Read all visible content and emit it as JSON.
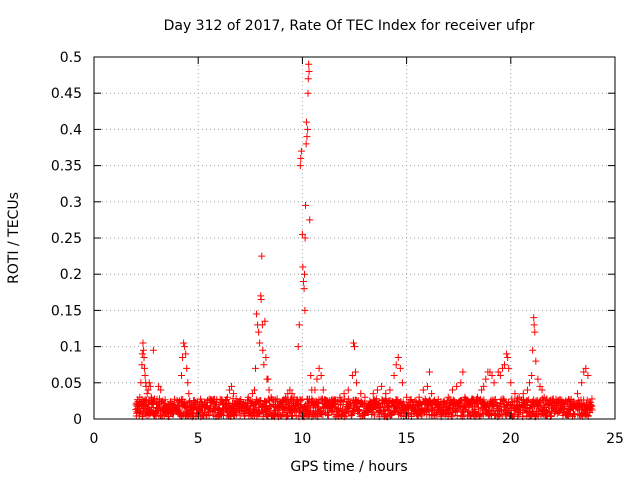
{
  "chart_data": {
    "type": "scatter",
    "title": "Day 312 of 2017, Rate Of TEC Index for receiver ufpr",
    "xlabel": "GPS time / hours",
    "ylabel": "ROTI / TECUs",
    "xlim": [
      0,
      25
    ],
    "ylim": [
      0,
      0.5
    ],
    "xticks": [
      0,
      5,
      10,
      15,
      20,
      25
    ],
    "yticks": [
      0,
      0.05,
      0.1,
      0.15,
      0.2,
      0.25,
      0.3,
      0.35,
      0.4,
      0.45,
      0.5
    ],
    "grid": true,
    "marker": "+",
    "series": [
      {
        "name": "ROTI",
        "color": "#ff0000",
        "points": [
          [
            2.0,
            0.013
          ],
          [
            2.05,
            0.008
          ],
          [
            2.1,
            0.02
          ],
          [
            2.15,
            0.011
          ],
          [
            2.2,
            0.03
          ],
          [
            2.25,
            0.05
          ],
          [
            2.3,
            0.075
          ],
          [
            2.32,
            0.09
          ],
          [
            2.35,
            0.105
          ],
          [
            2.38,
            0.095
          ],
          [
            2.4,
            0.085
          ],
          [
            2.42,
            0.07
          ],
          [
            2.45,
            0.06
          ],
          [
            2.48,
            0.05
          ],
          [
            2.5,
            0.045
          ],
          [
            2.55,
            0.035
          ],
          [
            2.6,
            0.04
          ],
          [
            2.65,
            0.05
          ],
          [
            2.7,
            0.045
          ],
          [
            2.75,
            0.03
          ],
          [
            2.8,
            0.02
          ],
          [
            2.85,
            0.095
          ],
          [
            2.9,
            0.028
          ],
          [
            3.0,
            0.02
          ],
          [
            3.1,
            0.045
          ],
          [
            3.2,
            0.04
          ],
          [
            3.3,
            0.025
          ],
          [
            3.4,
            0.018
          ],
          [
            3.5,
            0.015
          ],
          [
            3.6,
            0.012
          ],
          [
            3.7,
            0.014
          ],
          [
            3.8,
            0.02
          ],
          [
            3.9,
            0.015
          ],
          [
            4.0,
            0.012
          ],
          [
            4.1,
            0.025
          ],
          [
            4.2,
            0.06
          ],
          [
            4.25,
            0.085
          ],
          [
            4.3,
            0.105
          ],
          [
            4.35,
            0.1
          ],
          [
            4.4,
            0.09
          ],
          [
            4.45,
            0.07
          ],
          [
            4.5,
            0.05
          ],
          [
            4.55,
            0.035
          ],
          [
            4.6,
            0.025
          ],
          [
            4.7,
            0.02
          ],
          [
            4.8,
            0.015
          ],
          [
            4.9,
            0.02
          ],
          [
            5.0,
            0.015
          ],
          [
            5.2,
            0.012
          ],
          [
            5.4,
            0.018
          ],
          [
            5.6,
            0.015
          ],
          [
            5.8,
            0.012
          ],
          [
            6.0,
            0.015
          ],
          [
            6.2,
            0.02
          ],
          [
            6.4,
            0.03
          ],
          [
            6.5,
            0.04
          ],
          [
            6.6,
            0.045
          ],
          [
            6.7,
            0.035
          ],
          [
            6.8,
            0.02
          ],
          [
            7.0,
            0.015
          ],
          [
            7.2,
            0.02
          ],
          [
            7.4,
            0.03
          ],
          [
            7.6,
            0.035
          ],
          [
            7.7,
            0.04
          ],
          [
            7.75,
            0.07
          ],
          [
            7.8,
            0.145
          ],
          [
            7.85,
            0.13
          ],
          [
            7.9,
            0.12
          ],
          [
            7.95,
            0.105
          ],
          [
            8.0,
            0.17
          ],
          [
            8.02,
            0.165
          ],
          [
            8.05,
            0.225
          ],
          [
            8.08,
            0.13
          ],
          [
            8.1,
            0.095
          ],
          [
            8.15,
            0.075
          ],
          [
            8.2,
            0.135
          ],
          [
            8.25,
            0.085
          ],
          [
            8.3,
            0.055
          ],
          [
            8.35,
            0.055
          ],
          [
            8.4,
            0.04
          ],
          [
            8.5,
            0.03
          ],
          [
            8.6,
            0.02
          ],
          [
            8.8,
            0.015
          ],
          [
            9.0,
            0.02
          ],
          [
            9.2,
            0.03
          ],
          [
            9.3,
            0.035
          ],
          [
            9.4,
            0.04
          ],
          [
            9.5,
            0.035
          ],
          [
            9.6,
            0.03
          ],
          [
            9.7,
            0.025
          ],
          [
            9.8,
            0.1
          ],
          [
            9.85,
            0.13
          ],
          [
            9.9,
            0.35
          ],
          [
            9.92,
            0.36
          ],
          [
            9.95,
            0.37
          ],
          [
            10.0,
            0.255
          ],
          [
            10.02,
            0.21
          ],
          [
            10.05,
            0.19
          ],
          [
            10.08,
            0.18
          ],
          [
            10.1,
            0.2
          ],
          [
            10.12,
            0.15
          ],
          [
            10.13,
            0.25
          ],
          [
            10.15,
            0.295
          ],
          [
            10.18,
            0.38
          ],
          [
            10.2,
            0.41
          ],
          [
            10.22,
            0.39
          ],
          [
            10.25,
            0.4
          ],
          [
            10.27,
            0.45
          ],
          [
            10.28,
            0.47
          ],
          [
            10.3,
            0.49
          ],
          [
            10.32,
            0.48
          ],
          [
            10.35,
            0.275
          ],
          [
            10.4,
            0.06
          ],
          [
            10.45,
            0.04
          ],
          [
            10.5,
            0.025
          ],
          [
            10.6,
            0.04
          ],
          [
            10.7,
            0.055
          ],
          [
            10.8,
            0.07
          ],
          [
            10.9,
            0.06
          ],
          [
            11.0,
            0.04
          ],
          [
            11.2,
            0.025
          ],
          [
            11.4,
            0.018
          ],
          [
            11.6,
            0.02
          ],
          [
            11.8,
            0.03
          ],
          [
            12.0,
            0.035
          ],
          [
            12.2,
            0.04
          ],
          [
            12.4,
            0.06
          ],
          [
            12.45,
            0.105
          ],
          [
            12.5,
            0.1
          ],
          [
            12.55,
            0.065
          ],
          [
            12.6,
            0.05
          ],
          [
            12.8,
            0.035
          ],
          [
            13.0,
            0.03
          ],
          [
            13.2,
            0.02
          ],
          [
            13.4,
            0.035
          ],
          [
            13.6,
            0.04
          ],
          [
            13.8,
            0.045
          ],
          [
            14.0,
            0.035
          ],
          [
            14.2,
            0.04
          ],
          [
            14.4,
            0.06
          ],
          [
            14.5,
            0.075
          ],
          [
            14.6,
            0.085
          ],
          [
            14.7,
            0.07
          ],
          [
            14.8,
            0.05
          ],
          [
            15.0,
            0.03
          ],
          [
            15.2,
            0.02
          ],
          [
            15.4,
            0.025
          ],
          [
            15.6,
            0.03
          ],
          [
            15.8,
            0.04
          ],
          [
            16.0,
            0.045
          ],
          [
            16.1,
            0.065
          ],
          [
            16.2,
            0.035
          ],
          [
            16.4,
            0.02
          ],
          [
            16.6,
            0.015
          ],
          [
            16.8,
            0.02
          ],
          [
            17.0,
            0.03
          ],
          [
            17.2,
            0.04
          ],
          [
            17.4,
            0.045
          ],
          [
            17.6,
            0.05
          ],
          [
            17.7,
            0.065
          ],
          [
            17.8,
            0.03
          ],
          [
            18.0,
            0.02
          ],
          [
            18.2,
            0.025
          ],
          [
            18.4,
            0.03
          ],
          [
            18.6,
            0.04
          ],
          [
            18.7,
            0.045
          ],
          [
            18.8,
            0.055
          ],
          [
            18.9,
            0.065
          ],
          [
            19.0,
            0.065
          ],
          [
            19.1,
            0.06
          ],
          [
            19.2,
            0.05
          ],
          [
            19.4,
            0.065
          ],
          [
            19.5,
            0.06
          ],
          [
            19.6,
            0.07
          ],
          [
            19.7,
            0.075
          ],
          [
            19.8,
            0.09
          ],
          [
            19.85,
            0.085
          ],
          [
            19.9,
            0.07
          ],
          [
            20.0,
            0.05
          ],
          [
            20.2,
            0.035
          ],
          [
            20.4,
            0.03
          ],
          [
            20.6,
            0.035
          ],
          [
            20.8,
            0.04
          ],
          [
            20.9,
            0.05
          ],
          [
            21.0,
            0.06
          ],
          [
            21.05,
            0.095
          ],
          [
            21.1,
            0.14
          ],
          [
            21.12,
            0.13
          ],
          [
            21.15,
            0.12
          ],
          [
            21.2,
            0.08
          ],
          [
            21.3,
            0.055
          ],
          [
            21.4,
            0.045
          ],
          [
            21.5,
            0.04
          ],
          [
            21.6,
            0.03
          ],
          [
            21.8,
            0.02
          ],
          [
            22.0,
            0.015
          ],
          [
            22.2,
            0.012
          ],
          [
            22.4,
            0.015
          ],
          [
            22.6,
            0.02
          ],
          [
            22.8,
            0.025
          ],
          [
            23.0,
            0.02
          ],
          [
            23.2,
            0.035
          ],
          [
            23.4,
            0.05
          ],
          [
            23.5,
            0.065
          ],
          [
            23.6,
            0.07
          ],
          [
            23.7,
            0.06
          ],
          [
            23.8,
            0.02
          ]
        ],
        "noise_floor": {
          "x_range": [
            2.0,
            23.9
          ],
          "y_range": [
            0.003,
            0.028
          ]
        }
      }
    ]
  }
}
